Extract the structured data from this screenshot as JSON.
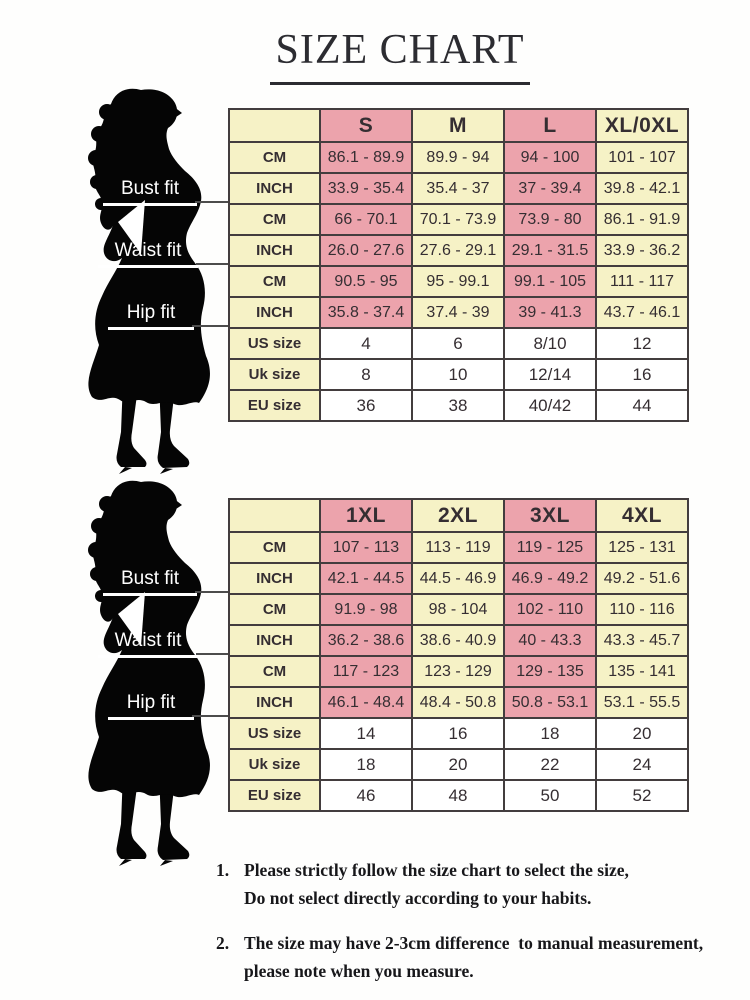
{
  "title": "SIZE CHART",
  "figure_labels": [
    "Bust fit",
    "Waist fit",
    "Hip fit"
  ],
  "colors": {
    "pink": "#eca3ac",
    "cream": "#f6f2c6",
    "cell_white": "#ffffff",
    "grid": "#433d3e",
    "silhouette": "#050505"
  },
  "chart_data": [
    {
      "type": "table",
      "title": "SIZE CHART",
      "size_headers": [
        "S",
        "M",
        "L",
        "XL/0XL"
      ],
      "measurement_rows": [
        {
          "group": "Bust fit",
          "unit": "CM",
          "values": [
            "86.1 - 89.9",
            "89.9 - 94",
            "94 - 100",
            "101 - 107"
          ]
        },
        {
          "group": "Bust fit",
          "unit": "INCH",
          "values": [
            "33.9 - 35.4",
            "35.4 - 37",
            "37 - 39.4",
            "39.8 - 42.1"
          ]
        },
        {
          "group": "Waist fit",
          "unit": "CM",
          "values": [
            "66 - 70.1",
            "70.1 - 73.9",
            "73.9 - 80",
            "86.1 - 91.9"
          ]
        },
        {
          "group": "Waist fit",
          "unit": "INCH",
          "values": [
            "26.0 - 27.6",
            "27.6 - 29.1",
            "29.1 - 31.5",
            "33.9 - 36.2"
          ]
        },
        {
          "group": "Hip fit",
          "unit": "CM",
          "values": [
            "90.5 - 95",
            "95 - 99.1",
            "99.1 - 105",
            "111 - 117"
          ]
        },
        {
          "group": "Hip fit",
          "unit": "INCH",
          "values": [
            "35.8 - 37.4",
            "37.4 - 39",
            "39 - 41.3",
            "43.7 - 46.1"
          ]
        }
      ],
      "size_rows": [
        {
          "label": "US size",
          "values": [
            "4",
            "6",
            "8/10",
            "12"
          ]
        },
        {
          "label": "Uk size",
          "values": [
            "8",
            "10",
            "12/14",
            "16"
          ]
        },
        {
          "label": "EU size",
          "values": [
            "36",
            "38",
            "40/42",
            "44"
          ]
        }
      ]
    },
    {
      "type": "table",
      "title": "SIZE CHART (plus sizes)",
      "size_headers": [
        "1XL",
        "2XL",
        "3XL",
        "4XL"
      ],
      "measurement_rows": [
        {
          "group": "Bust fit",
          "unit": "CM",
          "values": [
            "107 - 113",
            "113 - 119",
            "119 - 125",
            "125 - 131"
          ]
        },
        {
          "group": "Bust fit",
          "unit": "INCH",
          "values": [
            "42.1 - 44.5",
            "44.5 - 46.9",
            "46.9 - 49.2",
            "49.2 - 51.6"
          ]
        },
        {
          "group": "Waist fit",
          "unit": "CM",
          "values": [
            "91.9 - 98",
            "98 - 104",
            "102 - 110",
            "110 - 116"
          ]
        },
        {
          "group": "Waist fit",
          "unit": "INCH",
          "values": [
            "36.2 - 38.6",
            "38.6 - 40.9",
            "40 - 43.3",
            "43.3 - 45.7"
          ]
        },
        {
          "group": "Hip fit",
          "unit": "CM",
          "values": [
            "117 - 123",
            "123 - 129",
            "129 - 135",
            "135 - 141"
          ]
        },
        {
          "group": "Hip fit",
          "unit": "INCH",
          "values": [
            "46.1 - 48.4",
            "48.4 - 50.8",
            "50.8 - 53.1",
            "53.1 - 55.5"
          ]
        }
      ],
      "size_rows": [
        {
          "label": "US size",
          "values": [
            "14",
            "16",
            "18",
            "20"
          ]
        },
        {
          "label": "Uk size",
          "values": [
            "18",
            "20",
            "22",
            "24"
          ]
        },
        {
          "label": "EU size",
          "values": [
            "46",
            "48",
            "50",
            "52"
          ]
        }
      ]
    }
  ],
  "notes": [
    {
      "num": "1.",
      "lines": [
        "Please strictly follow the size chart to select the size,",
        "Do not select directly according to your habits."
      ]
    },
    {
      "num": "2.",
      "lines": [
        "The size may have 2-3cm difference  to manual measurement,",
        "please note when you measure."
      ]
    }
  ]
}
